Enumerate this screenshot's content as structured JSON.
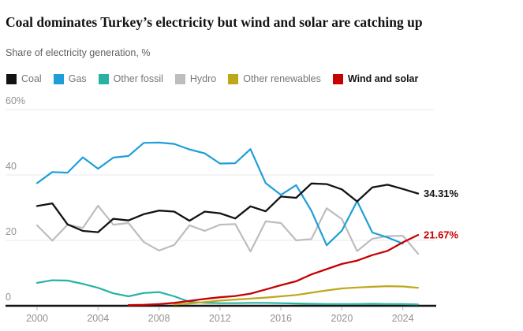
{
  "header": {
    "title": "Coal dominates Turkey’s electricity but wind and solar are catching up",
    "subtitle": "Share of electricity generation, %"
  },
  "colors": {
    "coal": "#121212",
    "gas": "#1e9ed9",
    "other_fossil": "#28b2a3",
    "hydro": "#bdbdbd",
    "other_renewables": "#bfa71c",
    "wind_and_solar": "#c70000",
    "grid": "#e9e9e9",
    "axis": "#121212",
    "tick_label": "#929292",
    "legend_label": "#767676"
  },
  "legend": {
    "items": [
      {
        "label": "Coal",
        "color": "#121212",
        "bold": false
      },
      {
        "label": "Gas",
        "color": "#1e9ed9",
        "bold": false
      },
      {
        "label": "Other fossil",
        "color": "#28b2a3",
        "bold": false
      },
      {
        "label": "Hydro",
        "color": "#bdbdbd",
        "bold": false
      },
      {
        "label": "Other renewables",
        "color": "#bfa71c",
        "bold": false
      },
      {
        "label": "Wind and solar",
        "color": "#c70000",
        "bold": true
      }
    ]
  },
  "chart_data": {
    "type": "line",
    "title": "Coal dominates Turkey’s electricity but wind and solar are catching up",
    "ylabel": "Share of electricity generation, %",
    "xlabel": "",
    "grid": "horizontal",
    "legend_position": "top",
    "xlim": [
      2000,
      2025
    ],
    "ylim": [
      0,
      60
    ],
    "x": [
      2000,
      2001,
      2002,
      2003,
      2004,
      2005,
      2006,
      2007,
      2008,
      2009,
      2010,
      2011,
      2012,
      2013,
      2014,
      2015,
      2016,
      2017,
      2018,
      2019,
      2020,
      2021,
      2022,
      2023,
      2024,
      2025
    ],
    "xticks": [
      {
        "v": 2000,
        "label": "2000"
      },
      {
        "v": 2004,
        "label": "2004"
      },
      {
        "v": 2008,
        "label": "2008"
      },
      {
        "v": 2012,
        "label": "2012"
      },
      {
        "v": 2016,
        "label": "2016"
      },
      {
        "v": 2020,
        "label": "2020"
      },
      {
        "v": 2024,
        "label": "2024"
      }
    ],
    "yticks": [
      {
        "v": 0,
        "label": "0"
      },
      {
        "v": 20,
        "label": "20"
      },
      {
        "v": 40,
        "label": "40"
      },
      {
        "v": 60,
        "label": "60%"
      }
    ],
    "series": [
      {
        "name": "Coal",
        "color": "#121212",
        "width": 2.3,
        "end_label": "34.31%",
        "values": [
          30.5,
          31.3,
          24.9,
          22.9,
          22.5,
          26.6,
          26.1,
          28.0,
          29.1,
          28.8,
          26.0,
          28.8,
          28.3,
          26.7,
          30.4,
          28.9,
          33.4,
          33.0,
          37.4,
          37.2,
          35.6,
          31.9,
          36.2,
          37.0,
          35.7,
          34.31
        ]
      },
      {
        "name": "Gas",
        "color": "#1e9ed9",
        "width": 2.2,
        "end_label": null,
        "values": [
          37.5,
          40.9,
          40.7,
          45.4,
          41.9,
          45.3,
          45.8,
          49.8,
          49.9,
          49.5,
          47.8,
          46.6,
          43.5,
          43.6,
          47.9,
          37.5,
          33.9,
          36.9,
          29.0,
          18.5,
          23.0,
          32.0,
          22.4,
          20.9,
          19.0,
          null
        ]
      },
      {
        "name": "Other fossil",
        "color": "#28b2a3",
        "width": 2.2,
        "end_label": null,
        "values": [
          7.0,
          7.8,
          7.7,
          6.7,
          5.5,
          3.8,
          2.9,
          3.9,
          4.2,
          2.9,
          1.2,
          0.9,
          0.8,
          0.8,
          0.9,
          0.9,
          0.8,
          0.7,
          0.6,
          0.5,
          0.5,
          0.5,
          0.6,
          0.5,
          0.5,
          0.4
        ]
      },
      {
        "name": "Hydro",
        "color": "#bdbdbd",
        "width": 2.2,
        "end_label": null,
        "values": [
          24.6,
          19.9,
          24.8,
          23.8,
          30.6,
          24.8,
          25.3,
          19.5,
          16.9,
          18.6,
          24.6,
          22.9,
          24.8,
          25.0,
          16.6,
          25.8,
          25.3,
          20.0,
          20.4,
          29.8,
          26.5,
          16.7,
          20.5,
          21.3,
          21.4,
          15.9
        ]
      },
      {
        "name": "Other renewables",
        "color": "#bfa71c",
        "width": 2.2,
        "end_label": null,
        "values": [
          null,
          null,
          null,
          null,
          null,
          null,
          null,
          null,
          null,
          0.4,
          0.7,
          1.1,
          1.6,
          1.9,
          2.2,
          2.5,
          2.9,
          3.3,
          4.0,
          4.7,
          5.3,
          5.6,
          5.8,
          6.0,
          5.9,
          5.5
        ]
      },
      {
        "name": "Wind and solar",
        "color": "#c70000",
        "width": 2.3,
        "end_label": "21.67%",
        "values": [
          null,
          null,
          null,
          null,
          null,
          null,
          0.2,
          0.3,
          0.5,
          0.9,
          1.5,
          2.1,
          2.6,
          3.0,
          3.7,
          5.0,
          6.3,
          7.5,
          9.6,
          11.2,
          12.8,
          13.8,
          15.5,
          16.8,
          19.4,
          21.67
        ]
      }
    ],
    "draw_order": [
      3,
      2,
      1,
      4,
      0,
      5
    ]
  }
}
